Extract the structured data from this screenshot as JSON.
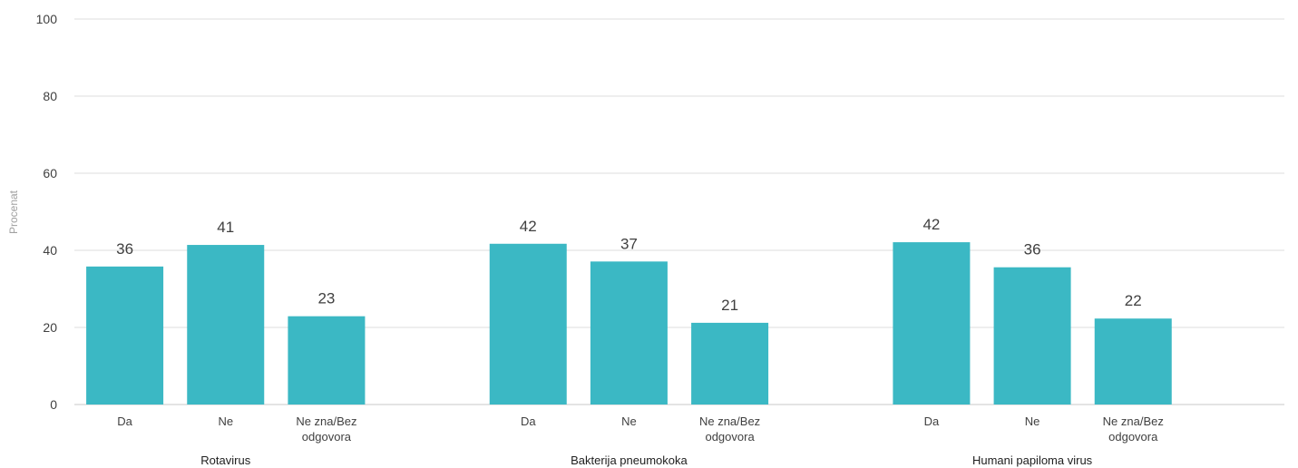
{
  "chart_data": {
    "type": "bar",
    "ylabel": "Procenat",
    "ylim": [
      0,
      100
    ],
    "yticks": [
      0,
      20,
      40,
      60,
      80,
      100
    ],
    "grid": true,
    "legend": "none",
    "color": "#3bb8c4",
    "groups": [
      {
        "name": "Rotavirus",
        "categories": [
          {
            "label": [
              "Da"
            ],
            "value": 35.8,
            "data_label": "36"
          },
          {
            "label": [
              "Ne"
            ],
            "value": 41.4,
            "data_label": "41"
          },
          {
            "label": [
              "Ne zna/Bez",
              "odgovora"
            ],
            "value": 22.9,
            "data_label": "23"
          }
        ]
      },
      {
        "name": "Bakterija pneumokoka",
        "categories": [
          {
            "label": [
              "Da"
            ],
            "value": 41.7,
            "data_label": "42"
          },
          {
            "label": [
              "Ne"
            ],
            "value": 37.1,
            "data_label": "37"
          },
          {
            "label": [
              "Ne zna/Bez",
              "odgovora"
            ],
            "value": 21.2,
            "data_label": "21"
          }
        ]
      },
      {
        "name": "Humani papiloma virus",
        "categories": [
          {
            "label": [
              "Da"
            ],
            "value": 42.1,
            "data_label": "42"
          },
          {
            "label": [
              "Ne"
            ],
            "value": 35.6,
            "data_label": "36"
          },
          {
            "label": [
              "Ne zna/Bez",
              "odgovora"
            ],
            "value": 22.3,
            "data_label": "22"
          }
        ]
      }
    ]
  }
}
